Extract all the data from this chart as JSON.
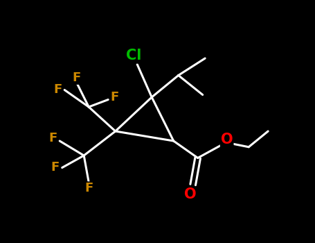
{
  "background_color": "#000000",
  "bond_line_color": "#ffffff",
  "bond_width": 2.2,
  "atoms": {
    "Cl": {
      "color": "#00bb00",
      "fontsize": 15
    },
    "F": {
      "color": "#cc8800",
      "fontsize": 13
    },
    "O": {
      "color": "#ff0000",
      "fontsize": 15
    }
  },
  "fig_width": 4.55,
  "fig_height": 3.5,
  "dpi": 100
}
